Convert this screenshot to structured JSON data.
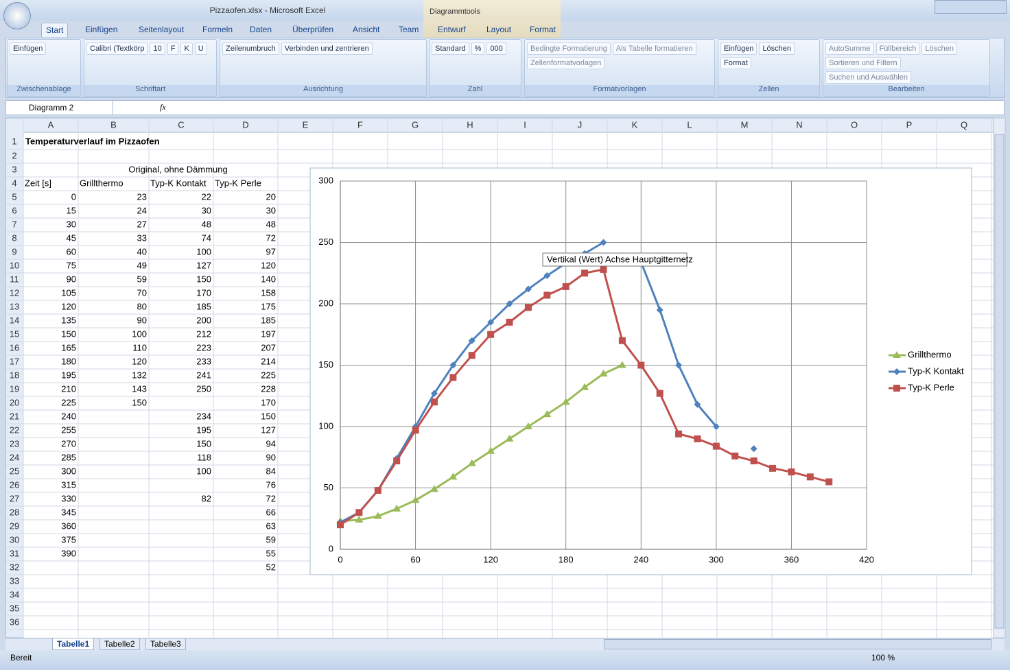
{
  "window": {
    "title": "Pizzaofen.xlsx - Microsoft Excel",
    "context": "Diagrammtools"
  },
  "tabs": [
    "Start",
    "Einfügen",
    "Seitenlayout",
    "Formeln",
    "Daten",
    "Überprüfen",
    "Ansicht",
    "Team",
    "Entwurf",
    "Layout",
    "Format"
  ],
  "ribbon": {
    "groups": [
      {
        "label": "Zwischenablage",
        "items": [
          "Einfügen"
        ]
      },
      {
        "label": "Schriftart",
        "items": [
          "Calibri (Textkörp",
          "10",
          "F",
          "K",
          "U"
        ]
      },
      {
        "label": "Ausrichtung",
        "items": [
          "Zeilenumbruch",
          "Verbinden und zentrieren"
        ]
      },
      {
        "label": "Zahl",
        "items": [
          "Standard",
          "%",
          "000"
        ]
      },
      {
        "label": "Formatvorlagen",
        "items": [
          "Bedingte Formatierung",
          "Als Tabelle formatieren",
          "Zellenformatvorlagen"
        ]
      },
      {
        "label": "Zellen",
        "items": [
          "Einfügen",
          "Löschen",
          "Format"
        ]
      },
      {
        "label": "Bearbeiten",
        "items": [
          "AutoSumme",
          "Füllbereich",
          "Löschen",
          "Sortieren und Filtern",
          "Suchen und Auswählen"
        ]
      }
    ]
  },
  "name_box": "Diagramm 2",
  "formula_label": "fx",
  "columns": [
    "A",
    "B",
    "C",
    "D",
    "E",
    "F",
    "G",
    "H",
    "I",
    "J",
    "K",
    "L",
    "M",
    "N",
    "O",
    "P",
    "Q"
  ],
  "row_numbers": [
    1,
    2,
    3,
    4,
    5,
    6,
    7,
    8,
    9,
    10,
    11,
    12,
    13,
    14,
    15,
    16,
    17,
    18,
    19,
    20,
    21,
    22,
    23,
    24,
    25,
    26,
    27,
    28,
    29,
    30,
    31,
    32,
    33,
    34,
    35,
    36
  ],
  "sheet": {
    "title": "Temperaturverlauf im Pizzaofen",
    "group_header": "Original, ohne Dämmung",
    "headers": [
      "Zeit [s]",
      "Grillthermo",
      "Typ-K Kontakt",
      "Typ-K Perle"
    ],
    "rows": [
      [
        0,
        23,
        22,
        20
      ],
      [
        15,
        24,
        30,
        30
      ],
      [
        30,
        27,
        48,
        48
      ],
      [
        45,
        33,
        74,
        72
      ],
      [
        60,
        40,
        100,
        97
      ],
      [
        75,
        49,
        127,
        120
      ],
      [
        90,
        59,
        150,
        140
      ],
      [
        105,
        70,
        170,
        158
      ],
      [
        120,
        80,
        185,
        175
      ],
      [
        135,
        90,
        200,
        185
      ],
      [
        150,
        100,
        212,
        197
      ],
      [
        165,
        110,
        223,
        207
      ],
      [
        180,
        120,
        233,
        214
      ],
      [
        195,
        132,
        241,
        225
      ],
      [
        210,
        143,
        250,
        228
      ],
      [
        225,
        150,
        null,
        170
      ],
      [
        240,
        null,
        234,
        150
      ],
      [
        255,
        null,
        195,
        127
      ],
      [
        270,
        null,
        150,
        94
      ],
      [
        285,
        null,
        118,
        90
      ],
      [
        300,
        null,
        100,
        84
      ],
      [
        315,
        null,
        null,
        76
      ],
      [
        330,
        null,
        82,
        72
      ],
      [
        345,
        null,
        null,
        66
      ],
      [
        360,
        null,
        null,
        63
      ],
      [
        375,
        null,
        null,
        59
      ],
      [
        390,
        null,
        null,
        55
      ],
      [
        null,
        null,
        null,
        52
      ]
    ]
  },
  "sheets": [
    "Tabelle1",
    "Tabelle2",
    "Tabelle3"
  ],
  "status": "Bereit",
  "zoom": "100 %",
  "tooltip": "Vertikal (Wert) Achse Hauptgitternetz",
  "chart_data": {
    "type": "scatter-line",
    "xlim": [
      0,
      420
    ],
    "xticks": [
      0,
      60,
      120,
      180,
      240,
      300,
      360,
      420
    ],
    "ylim": [
      0,
      300
    ],
    "yticks": [
      0,
      50,
      100,
      150,
      200,
      250,
      300
    ],
    "grid": true,
    "legend": "right",
    "series": [
      {
        "name": "Grillthermo",
        "color": "#9bbb59",
        "marker": "triangle",
        "x": [
          0,
          15,
          30,
          45,
          60,
          75,
          90,
          105,
          120,
          135,
          150,
          165,
          180,
          195,
          210,
          225
        ],
        "values": [
          23,
          24,
          27,
          33,
          40,
          49,
          59,
          70,
          80,
          90,
          100,
          110,
          120,
          132,
          143,
          150
        ]
      },
      {
        "name": "Typ-K Kontakt",
        "color": "#4f81bd",
        "marker": "diamond",
        "x": [
          0,
          15,
          30,
          45,
          60,
          75,
          90,
          105,
          120,
          135,
          150,
          165,
          180,
          195,
          210,
          225,
          240,
          255,
          270,
          285,
          300,
          315,
          330
        ],
        "values": [
          22,
          30,
          48,
          74,
          100,
          127,
          150,
          170,
          185,
          200,
          212,
          223,
          233,
          241,
          250,
          null,
          234,
          195,
          150,
          118,
          100,
          null,
          82
        ]
      },
      {
        "name": "Typ-K Perle",
        "color": "#c0504d",
        "marker": "square",
        "x": [
          0,
          15,
          30,
          45,
          60,
          75,
          90,
          105,
          120,
          135,
          150,
          165,
          180,
          195,
          210,
          225,
          240,
          255,
          270,
          285,
          300,
          315,
          330,
          345,
          360,
          375,
          390
        ],
        "values": [
          20,
          30,
          48,
          72,
          97,
          120,
          140,
          158,
          175,
          185,
          197,
          207,
          214,
          225,
          228,
          170,
          150,
          127,
          94,
          90,
          84,
          76,
          72,
          66,
          63,
          59,
          55
        ]
      }
    ]
  }
}
